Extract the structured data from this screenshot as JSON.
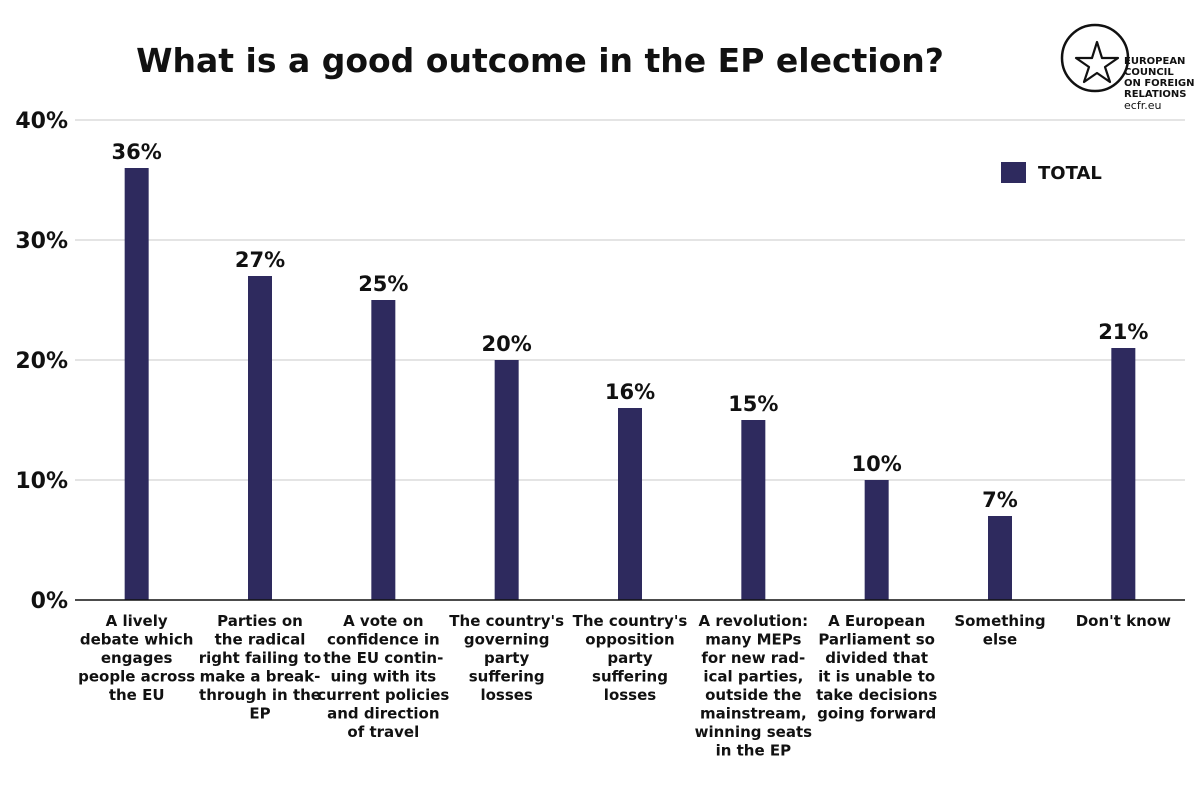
{
  "logo": {
    "lines": [
      "EUROPEAN",
      "COUNCIL",
      "ON FOREIGN",
      "RELATIONS"
    ],
    "url": "ecfr.eu"
  },
  "chart_data": {
    "type": "bar",
    "title": "What is a good outcome in the EP election?",
    "xlabel": "",
    "ylabel": "",
    "ylim": [
      0,
      40
    ],
    "yticks": [
      "0%",
      "10%",
      "20%",
      "30%",
      "40%"
    ],
    "grid": true,
    "legend_position": "top-right",
    "bar_color": "#2e2a5e",
    "categories": [
      [
        "A lively",
        "debate which",
        "engages",
        "people across",
        "the EU"
      ],
      [
        "Parties on",
        "the radical",
        "right failing to",
        "make a break-",
        "through in the",
        "EP"
      ],
      [
        "A vote on",
        "confidence in",
        "the EU contin-",
        "uing with its",
        "current policies",
        "and direction",
        "of travel"
      ],
      [
        "The country's",
        "governing",
        "party",
        "suffering",
        "losses"
      ],
      [
        "The country's",
        "opposition",
        "party",
        "suffering",
        "losses"
      ],
      [
        "A revolution:",
        "many MEPs",
        "for new rad-",
        "ical parties,",
        "outside the",
        "mainstream,",
        "winning seats",
        "in the EP"
      ],
      [
        "A European",
        "Parliament so",
        "divided that",
        "it is unable to",
        "take decisions",
        "going forward"
      ],
      [
        "Something",
        "else"
      ],
      [
        "Don't know"
      ]
    ],
    "series": [
      {
        "name": "TOTAL",
        "values": [
          36,
          27,
          25,
          20,
          16,
          15,
          10,
          7,
          21
        ],
        "labels": [
          "36%",
          "27%",
          "25%",
          "20%",
          "16%",
          "15%",
          "10%",
          "7%",
          "21%"
        ]
      }
    ]
  }
}
